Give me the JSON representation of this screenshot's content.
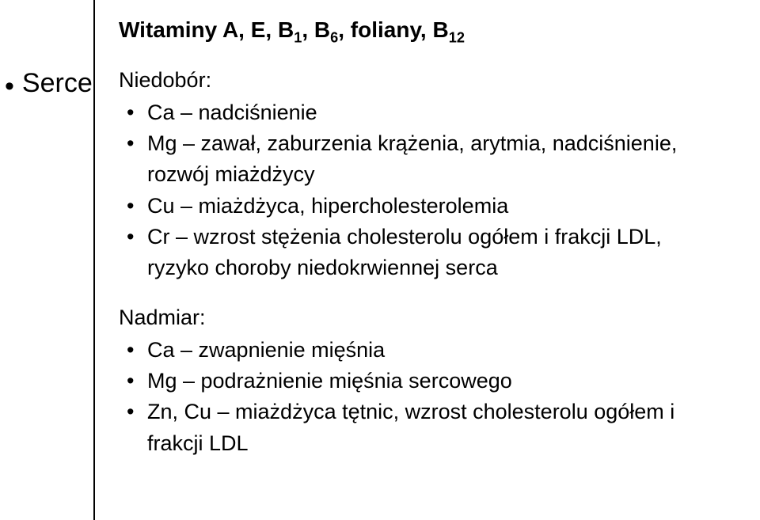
{
  "heading_parts": {
    "p1": "Witaminy A, E, B",
    "s1": "1",
    "p2": ", B",
    "s2": "6",
    "p3": ", foliany, B",
    "s3": "12"
  },
  "left": {
    "label": "Serce"
  },
  "section1": {
    "label": "Niedobór:",
    "items": [
      "Ca – nadciśnienie",
      "Mg – zawał, zaburzenia krążenia, arytmia, nadciśnienie, rozwój miażdżycy",
      "Cu – miażdżyca, hipercholesterolemia",
      "Cr – wzrost stężenia cholesterolu ogółem i frakcji LDL, ryzyko choroby niedokrwiennej serca"
    ]
  },
  "section2": {
    "label": "Nadmiar:",
    "items": [
      "Ca – zwapnienie mięśnia",
      "Mg – podrażnienie mięśnia sercowego",
      "Zn, Cu – miażdżyca tętnic, wzrost cholesterolu ogółem i frakcji LDL"
    ]
  }
}
